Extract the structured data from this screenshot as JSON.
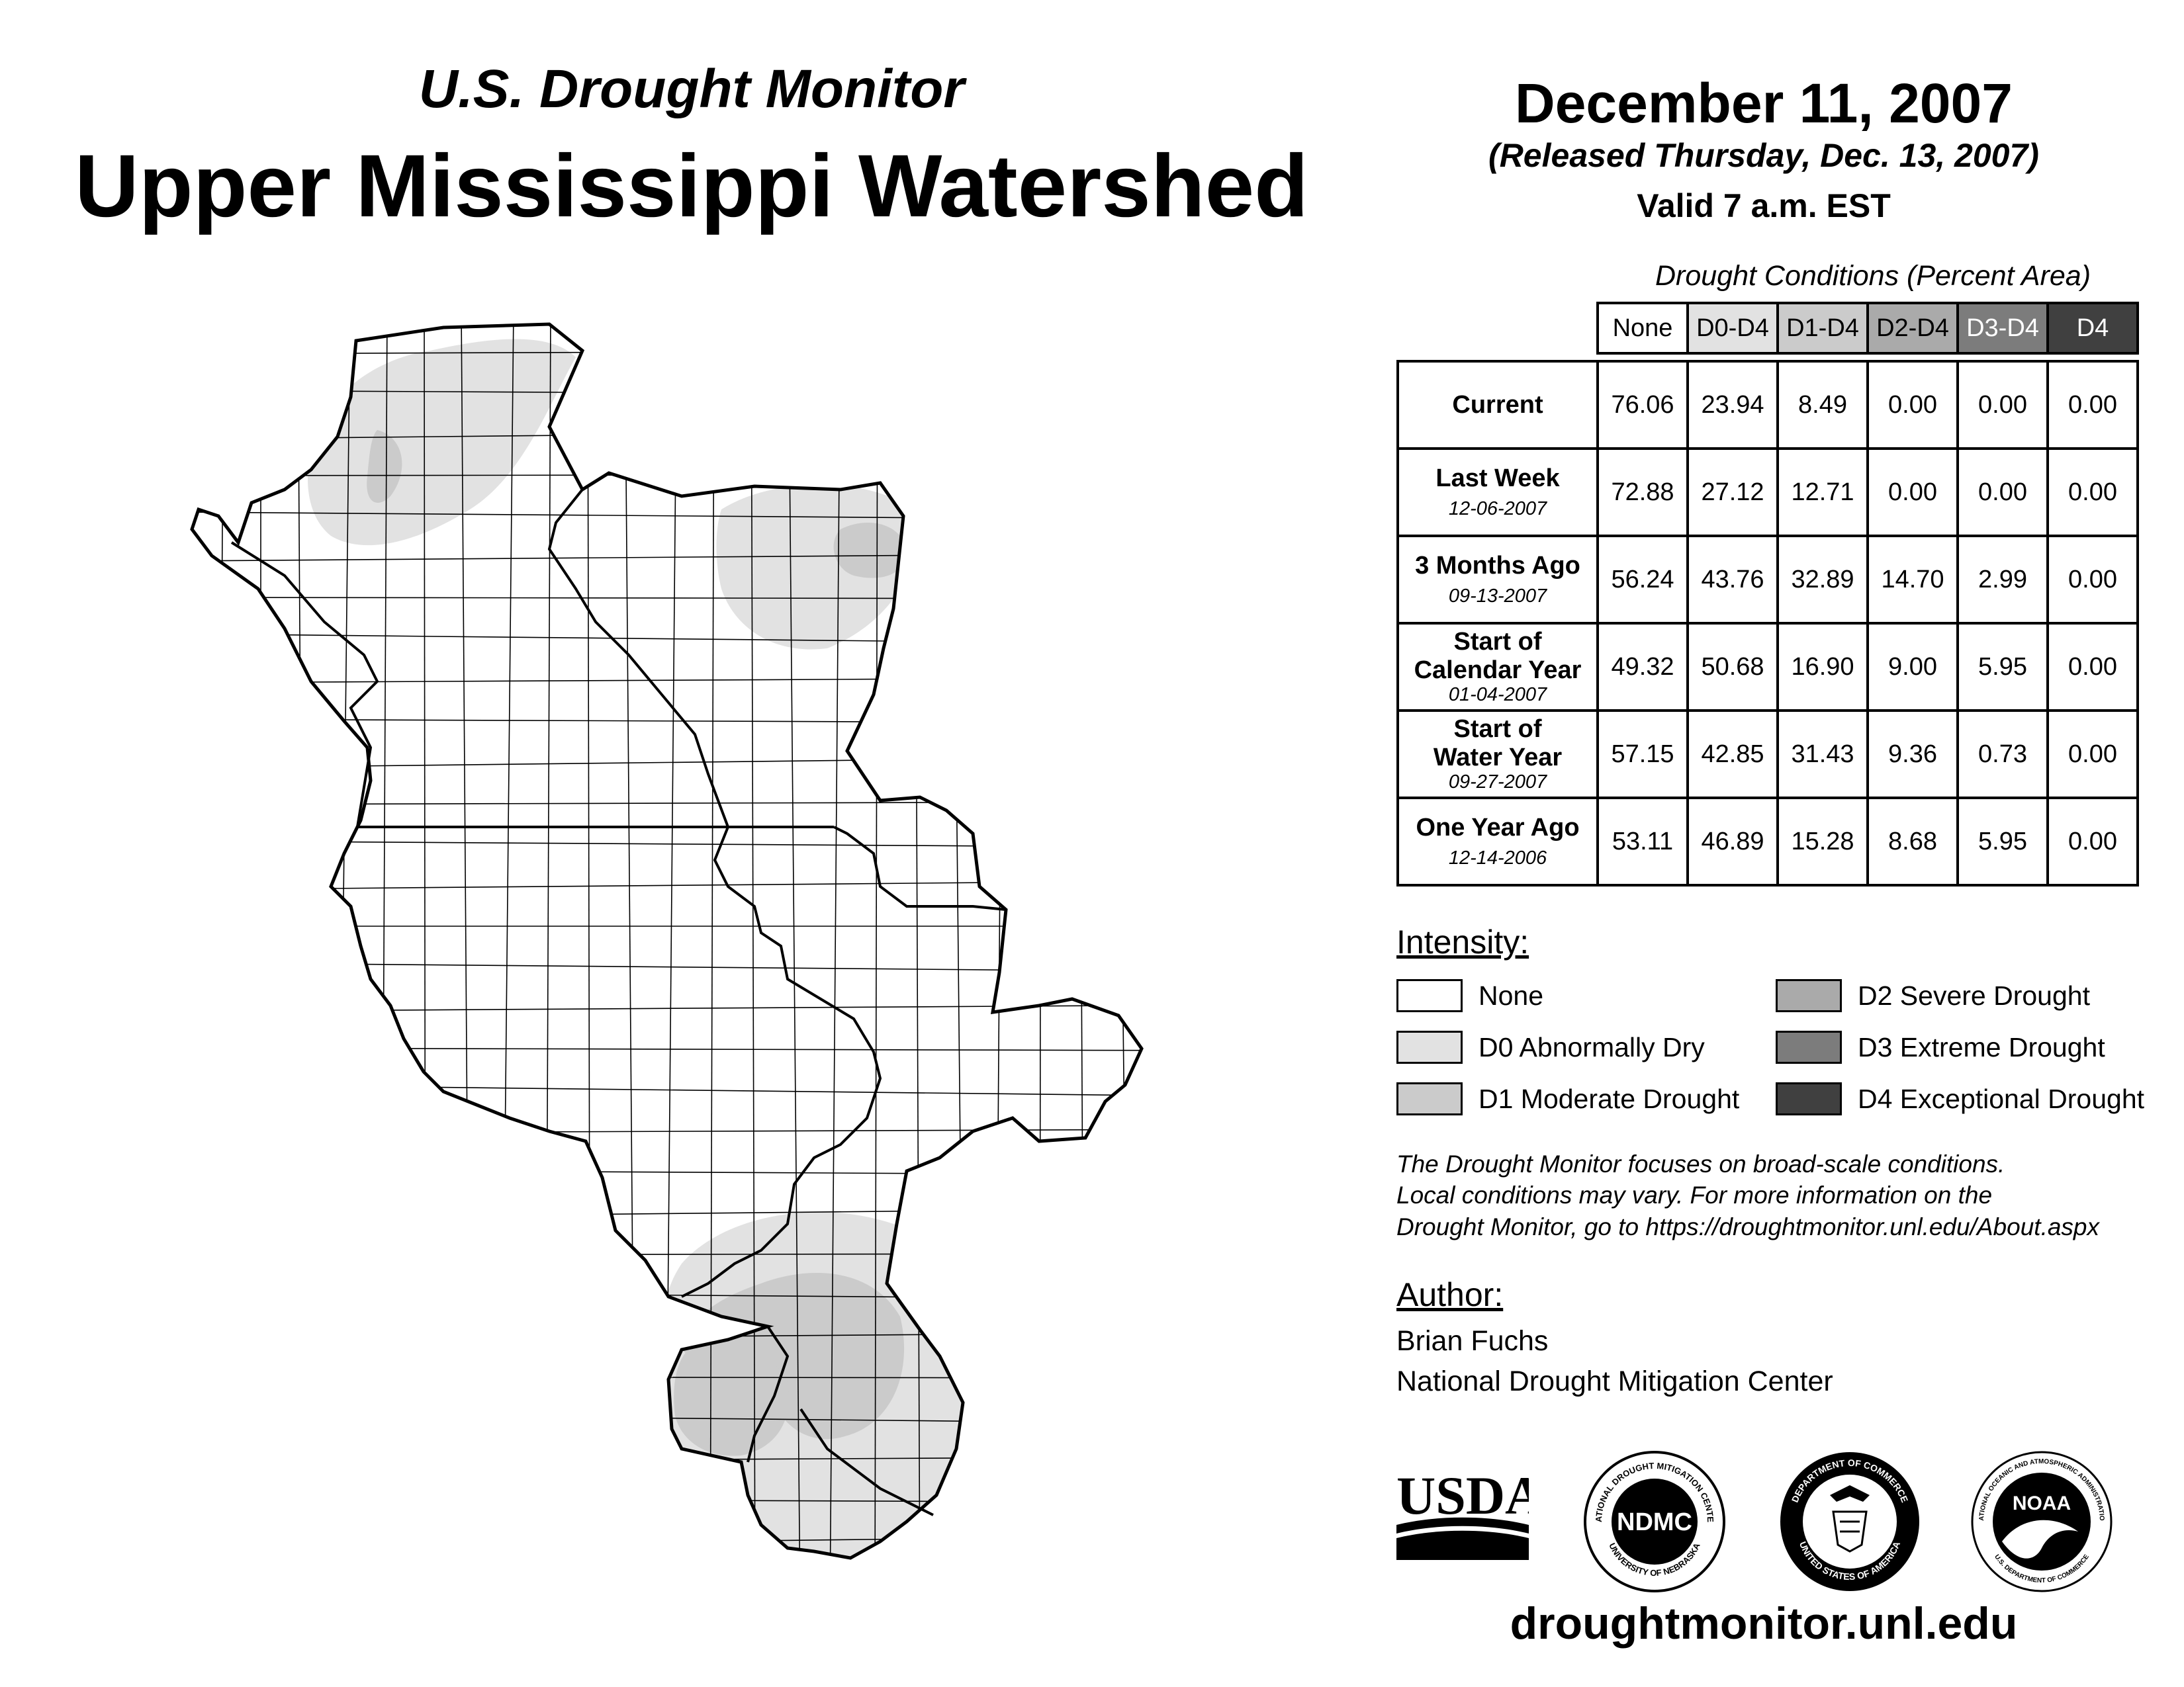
{
  "header": {
    "subtitle": "U.S. Drought Monitor",
    "title": "Upper Mississippi Watershed",
    "date": "December 11, 2007",
    "released": "(Released Thursday, Dec. 13, 2007)",
    "valid": "Valid 7 a.m. EST"
  },
  "table": {
    "caption": "Drought Conditions (Percent Area)",
    "columns": [
      "None",
      "D0-D4",
      "D1-D4",
      "D2-D4",
      "D3-D4",
      "D4"
    ],
    "rows": [
      {
        "label_line1": "Current",
        "label_line2": "",
        "date": "",
        "values": [
          "76.06",
          "23.94",
          "8.49",
          "0.00",
          "0.00",
          "0.00"
        ]
      },
      {
        "label_line1": "Last Week",
        "label_line2": "",
        "date": "12-06-2007",
        "values": [
          "72.88",
          "27.12",
          "12.71",
          "0.00",
          "0.00",
          "0.00"
        ]
      },
      {
        "label_line1": "3 Months Ago",
        "label_line2": "",
        "date": "09-13-2007",
        "values": [
          "56.24",
          "43.76",
          "32.89",
          "14.70",
          "2.99",
          "0.00"
        ]
      },
      {
        "label_line1": "Start of",
        "label_line2": "Calendar Year",
        "date": "01-04-2007",
        "values": [
          "49.32",
          "50.68",
          "16.90",
          "9.00",
          "5.95",
          "0.00"
        ]
      },
      {
        "label_line1": "Start of",
        "label_line2": "Water Year",
        "date": "09-27-2007",
        "values": [
          "57.15",
          "42.85",
          "31.43",
          "9.36",
          "0.73",
          "0.00"
        ]
      },
      {
        "label_line1": "One Year Ago",
        "label_line2": "",
        "date": "12-14-2006",
        "values": [
          "53.11",
          "46.89",
          "15.28",
          "8.68",
          "5.95",
          "0.00"
        ]
      }
    ]
  },
  "legend": {
    "title": "Intensity:",
    "items": [
      {
        "label": "None",
        "color": "#ffffff"
      },
      {
        "label": "D0 Abnormally Dry",
        "color": "#e2e2e2"
      },
      {
        "label": "D1 Moderate Drought",
        "color": "#cbcbcb"
      },
      {
        "label": "D2 Severe Drought",
        "color": "#aaaaaa"
      },
      {
        "label": "D3 Extreme Drought",
        "color": "#7c7c7c"
      },
      {
        "label": "D4 Exceptional Drought",
        "color": "#404040"
      }
    ]
  },
  "note": {
    "line1": "The Drought Monitor focuses on broad-scale conditions.",
    "line2": "Local conditions may vary. For more information on the",
    "line3": "Drought Monitor, go to https://droughtmonitor.unl.edu/About.aspx"
  },
  "author": {
    "title": "Author:",
    "name": "Brian Fuchs",
    "org": "National Drought Mitigation Center"
  },
  "logos": {
    "usda": "USDA",
    "ndmc": "NDMC",
    "ndmc_ring_top": "NATIONAL DROUGHT MITIGATION CENTER",
    "ndmc_ring_bottom": "UNIVERSITY OF NEBRASKA",
    "doc_ring_top": "DEPARTMENT OF COMMERCE",
    "doc_ring_bottom": "UNITED STATES OF AMERICA",
    "noaa": "NOAA",
    "noaa_ring_top": "NATIONAL OCEANIC AND ATMOSPHERIC ADMINISTRATION",
    "noaa_ring_bottom": "U.S. DEPARTMENT OF COMMERCE"
  },
  "footer": {
    "url": "droughtmonitor.unl.edu"
  }
}
